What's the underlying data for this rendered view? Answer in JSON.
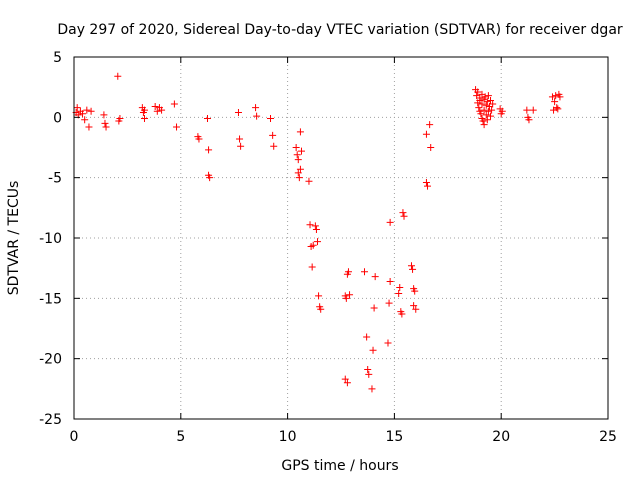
{
  "chart_data": {
    "type": "scatter",
    "title": "Day 297 of 2020, Sidereal Day-to-day VTEC variation (SDTVAR) for receiver dgar",
    "xlabel": "GPS time / hours",
    "ylabel": "SDTVAR / TECUs",
    "xlim": [
      0,
      25
    ],
    "ylim": [
      -25,
      5
    ],
    "xticks": [
      "0",
      "5",
      "10",
      "15",
      "20",
      "25"
    ],
    "yticks": [
      "5",
      "0",
      "-5",
      "-10",
      "-15",
      "-20",
      "-25"
    ],
    "grid": true,
    "marker": "+",
    "color": "#ff0000",
    "series": [
      {
        "name": "SDTVAR",
        "points": [
          [
            0.1,
            0.4
          ],
          [
            0.15,
            0.8
          ],
          [
            0.2,
            0.2
          ],
          [
            0.3,
            0.5
          ],
          [
            0.4,
            0.3
          ],
          [
            0.5,
            -0.2
          ],
          [
            0.6,
            0.6
          ],
          [
            0.7,
            -0.8
          ],
          [
            0.8,
            0.5
          ],
          [
            1.4,
            0.2
          ],
          [
            1.45,
            -0.5
          ],
          [
            1.5,
            -0.8
          ],
          [
            2.05,
            3.4
          ],
          [
            2.1,
            -0.3
          ],
          [
            2.15,
            -0.1
          ],
          [
            3.2,
            0.8
          ],
          [
            3.25,
            0.4
          ],
          [
            3.3,
            -0.1
          ],
          [
            3.3,
            0.6
          ],
          [
            3.8,
            0.9
          ],
          [
            3.9,
            0.5
          ],
          [
            4.0,
            0.8
          ],
          [
            4.1,
            0.6
          ],
          [
            4.7,
            1.1
          ],
          [
            4.8,
            -0.8
          ],
          [
            5.8,
            -1.6
          ],
          [
            5.85,
            -1.8
          ],
          [
            6.25,
            -0.1
          ],
          [
            6.3,
            -2.7
          ],
          [
            6.3,
            -4.8
          ],
          [
            6.35,
            -5.0
          ],
          [
            7.7,
            0.4
          ],
          [
            7.75,
            -1.8
          ],
          [
            7.8,
            -2.4
          ],
          [
            8.5,
            0.8
          ],
          [
            8.55,
            0.1
          ],
          [
            9.2,
            -0.1
          ],
          [
            9.3,
            -1.5
          ],
          [
            9.35,
            -2.4
          ],
          [
            10.4,
            -2.5
          ],
          [
            10.45,
            -3.1
          ],
          [
            10.5,
            -3.5
          ],
          [
            10.5,
            -4.6
          ],
          [
            10.55,
            -5.0
          ],
          [
            10.6,
            -1.2
          ],
          [
            10.6,
            -4.3
          ],
          [
            10.65,
            -2.8
          ],
          [
            11.0,
            -5.3
          ],
          [
            11.05,
            -8.9
          ],
          [
            11.1,
            -10.7
          ],
          [
            11.15,
            -12.4
          ],
          [
            11.2,
            -10.6
          ],
          [
            11.3,
            -9.0
          ],
          [
            11.35,
            -9.3
          ],
          [
            11.4,
            -10.3
          ],
          [
            11.45,
            -14.8
          ],
          [
            11.5,
            -15.7
          ],
          [
            11.55,
            -15.9
          ],
          [
            12.7,
            -14.8
          ],
          [
            12.75,
            -15.0
          ],
          [
            12.8,
            -13.0
          ],
          [
            12.85,
            -12.8
          ],
          [
            12.9,
            -14.7
          ],
          [
            12.7,
            -21.7
          ],
          [
            12.8,
            -22.0
          ],
          [
            13.6,
            -12.8
          ],
          [
            13.7,
            -18.2
          ],
          [
            13.75,
            -20.9
          ],
          [
            13.8,
            -21.3
          ],
          [
            13.95,
            -22.5
          ],
          [
            14.0,
            -19.3
          ],
          [
            14.05,
            -15.8
          ],
          [
            14.1,
            -13.2
          ],
          [
            14.7,
            -18.7
          ],
          [
            14.75,
            -15.4
          ],
          [
            14.8,
            -13.6
          ],
          [
            14.8,
            -8.7
          ],
          [
            15.2,
            -14.6
          ],
          [
            15.25,
            -14.1
          ],
          [
            15.3,
            -16.1
          ],
          [
            15.35,
            -16.3
          ],
          [
            15.4,
            -7.9
          ],
          [
            15.45,
            -8.2
          ],
          [
            15.8,
            -12.3
          ],
          [
            15.85,
            -12.6
          ],
          [
            15.9,
            -14.2
          ],
          [
            15.95,
            -14.4
          ],
          [
            15.9,
            -15.6
          ],
          [
            16.0,
            -15.9
          ],
          [
            16.5,
            -1.4
          ],
          [
            16.5,
            -5.4
          ],
          [
            16.55,
            -5.7
          ],
          [
            16.65,
            -0.6
          ],
          [
            16.7,
            -2.5
          ],
          [
            18.8,
            2.3
          ],
          [
            18.85,
            1.8
          ],
          [
            18.9,
            1.2
          ],
          [
            18.95,
            0.8
          ],
          [
            19.0,
            0.5
          ],
          [
            19.05,
            0.3
          ],
          [
            19.1,
            -0.1
          ],
          [
            19.15,
            -0.3
          ],
          [
            19.2,
            -0.6
          ],
          [
            18.9,
            2.1
          ],
          [
            19.0,
            1.6
          ],
          [
            19.1,
            1.1
          ],
          [
            19.2,
            0.6
          ],
          [
            19.3,
            0.2
          ],
          [
            19.35,
            -0.2
          ],
          [
            19.0,
            1.4
          ],
          [
            19.1,
            1.9
          ],
          [
            19.2,
            1.5
          ],
          [
            19.3,
            1.0
          ],
          [
            19.4,
            0.5
          ],
          [
            19.5,
            0.1
          ],
          [
            19.25,
            1.7
          ],
          [
            19.35,
            1.3
          ],
          [
            19.45,
            0.9
          ],
          [
            19.55,
            0.6
          ],
          [
            19.4,
            1.8
          ],
          [
            19.5,
            1.4
          ],
          [
            19.6,
            1.1
          ],
          [
            19.95,
            0.7
          ],
          [
            20.0,
            0.3
          ],
          [
            20.05,
            0.5
          ],
          [
            21.2,
            0.6
          ],
          [
            21.25,
            0.0
          ],
          [
            21.3,
            -0.2
          ],
          [
            21.5,
            0.6
          ],
          [
            22.4,
            1.7
          ],
          [
            22.45,
            0.6
          ],
          [
            22.5,
            1.3
          ],
          [
            22.55,
            1.8
          ],
          [
            22.6,
            0.8
          ],
          [
            22.65,
            0.7
          ],
          [
            22.7,
            1.9
          ],
          [
            22.75,
            1.7
          ]
        ]
      }
    ]
  }
}
